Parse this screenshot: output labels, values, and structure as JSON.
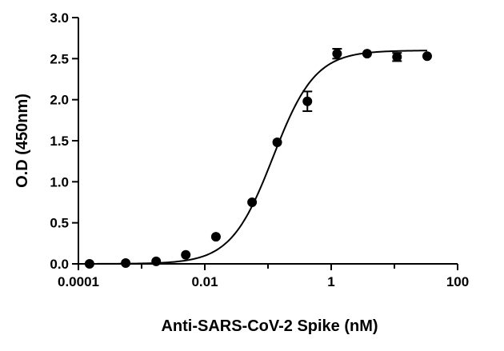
{
  "chart_data": {
    "type": "scatter",
    "title": "",
    "xlabel": "Anti-SARS-CoV-2 Spike (nM)",
    "ylabel": "O.D (450nm)",
    "x_scale": "log",
    "xlim": [
      0.0001,
      100
    ],
    "ylim": [
      0,
      3.0
    ],
    "x_ticks": [
      0.0001,
      0.001,
      0.01,
      0.1,
      1,
      10,
      100
    ],
    "x_tick_labels": [
      "0.0001",
      "",
      "0.01",
      "",
      "1",
      "",
      "100"
    ],
    "y_ticks": [
      0.0,
      0.5,
      1.0,
      1.5,
      2.0,
      2.5,
      3.0
    ],
    "y_tick_labels": [
      "0.0",
      "0.5",
      "1.0",
      "1.5",
      "2.0",
      "2.5",
      "3.0"
    ],
    "grid": false,
    "legend": "none",
    "colors": {
      "marks": "#000000",
      "background": "#ffffff"
    },
    "series": [
      {
        "marker": "circle",
        "points": [
          {
            "x": 0.00015,
            "y": 0.0
          },
          {
            "x": 0.00056,
            "y": 0.01
          },
          {
            "x": 0.0017,
            "y": 0.03
          },
          {
            "x": 0.005,
            "y": 0.11
          },
          {
            "x": 0.015,
            "y": 0.33
          },
          {
            "x": 0.056,
            "y": 0.75
          },
          {
            "x": 0.14,
            "y": 1.48
          },
          {
            "x": 0.42,
            "y": 1.98,
            "err": 0.12
          },
          {
            "x": 1.24,
            "y": 2.56,
            "err": 0.06
          },
          {
            "x": 3.7,
            "y": 2.56
          },
          {
            "x": 11.0,
            "y": 2.52,
            "err": 0.05
          },
          {
            "x": 33.0,
            "y": 2.53
          }
        ]
      }
    ],
    "fit_curve": {
      "type": "4PL",
      "bottom": 0.0,
      "top": 2.6,
      "ec50": 0.12,
      "hill": 1.3
    }
  }
}
